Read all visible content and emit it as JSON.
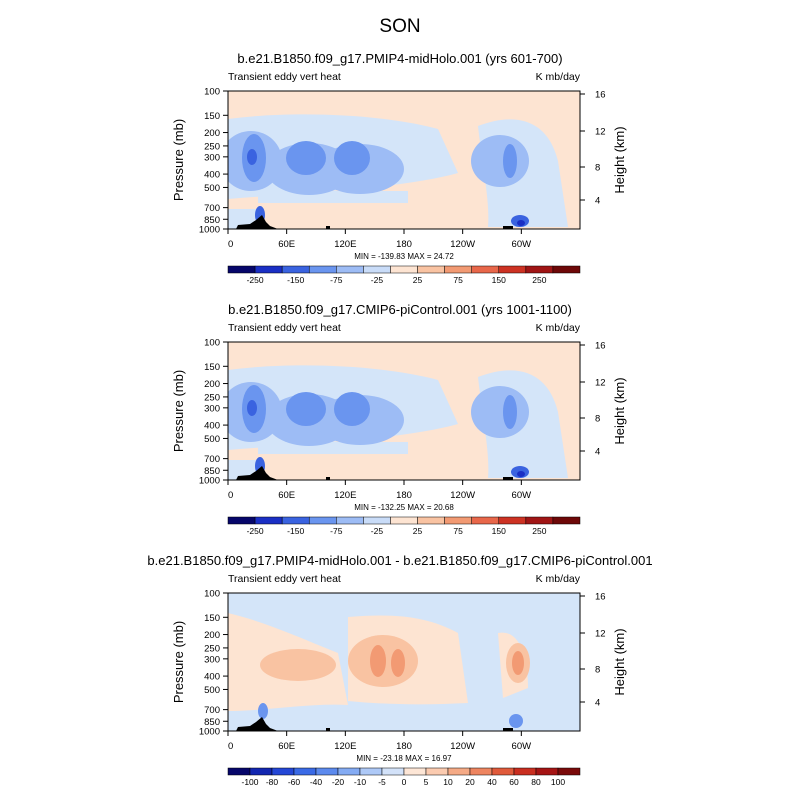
{
  "figure": {
    "title": "SON"
  },
  "chart_data": [
    {
      "type": "heatmap",
      "title": "b.e21.B1850.f09_g17.PMIP4-midHolo.001 (yrs 601-700)",
      "left_label": "Transient eddy vert heat",
      "right_label": "K mb/day",
      "xlabel": "",
      "ylabel": "Pressure (mb)",
      "ylabel_right": "Height (km)",
      "x_ticks": [
        "0",
        "60E",
        "120E",
        "180",
        "120W",
        "60W"
      ],
      "y_ticks": [
        "100",
        "150",
        "200",
        "250",
        "300",
        "400",
        "500",
        "700",
        "850",
        "1000"
      ],
      "y_ticks_right": [
        "16",
        "12",
        "8",
        "4"
      ],
      "stats": "MIN = -139.83  MAX =  24.72",
      "colorbar_ticks": [
        "-250",
        "-150",
        "-75",
        "-25",
        "25",
        "75",
        "150",
        "250"
      ],
      "min": -139.83,
      "max": 24.72
    },
    {
      "type": "heatmap",
      "title": "b.e21.B1850.f09_g17.CMIP6-piControl.001 (yrs 1001-1100)",
      "left_label": "Transient eddy vert heat",
      "right_label": "K mb/day",
      "xlabel": "",
      "ylabel": "Pressure (mb)",
      "ylabel_right": "Height (km)",
      "x_ticks": [
        "0",
        "60E",
        "120E",
        "180",
        "120W",
        "60W"
      ],
      "y_ticks": [
        "100",
        "150",
        "200",
        "250",
        "300",
        "400",
        "500",
        "700",
        "850",
        "1000"
      ],
      "y_ticks_right": [
        "16",
        "12",
        "8",
        "4"
      ],
      "stats": "MIN = -132.25  MAX =  20.68",
      "colorbar_ticks": [
        "-250",
        "-150",
        "-75",
        "-25",
        "25",
        "75",
        "150",
        "250"
      ],
      "min": -132.25,
      "max": 20.68
    },
    {
      "type": "heatmap",
      "title": "b.e21.B1850.f09_g17.PMIP4-midHolo.001 - b.e21.B1850.f09_g17.CMIP6-piControl.001",
      "left_label": "Transient eddy vert heat",
      "right_label": "K mb/day",
      "xlabel": "",
      "ylabel": "Pressure (mb)",
      "ylabel_right": "Height (km)",
      "x_ticks": [
        "0",
        "60E",
        "120E",
        "180",
        "120W",
        "60W"
      ],
      "y_ticks": [
        "100",
        "150",
        "200",
        "250",
        "300",
        "400",
        "500",
        "700",
        "850",
        "1000"
      ],
      "y_ticks_right": [
        "16",
        "12",
        "8",
        "4"
      ],
      "stats": "MIN = -23.18  MAX =  16.97",
      "colorbar_ticks": [
        "-100",
        "-80",
        "-60",
        "-40",
        "-20",
        "-10",
        "-5",
        "0",
        "5",
        "10",
        "20",
        "40",
        "60",
        "80",
        "100"
      ],
      "min": -23.18,
      "max": 16.97
    }
  ],
  "colors": {
    "colormap": [
      "#06066a",
      "#1a2fc4",
      "#3a63e0",
      "#6a95ef",
      "#9dbcf5",
      "#c9dcf8",
      "#fde4d2",
      "#f9c3a2",
      "#f29a73",
      "#e8674a",
      "#cd3223",
      "#a01515",
      "#6e0808"
    ],
    "diff_colormap": [
      "#06066a",
      "#1226b0",
      "#2447d6",
      "#3a6ae6",
      "#5c8aee",
      "#84abf3",
      "#aec9f7",
      "#d3e2f9",
      "#fde6d6",
      "#fbcbb0",
      "#f5aa86",
      "#ee8560",
      "#e05a3b",
      "#c92e20",
      "#a51414",
      "#7a0a0a"
    ],
    "panel_bg_light_blue": "#d4e5f9",
    "panel_bg_peach": "#fde4d2",
    "blue_mid": "#9dbcf5",
    "blue_dark": "#6a95ef",
    "blue_deep": "#3a63e0",
    "blue_core": "#1a2fc4",
    "red_light": "#f9c3a2",
    "red_mid": "#f29a73"
  }
}
